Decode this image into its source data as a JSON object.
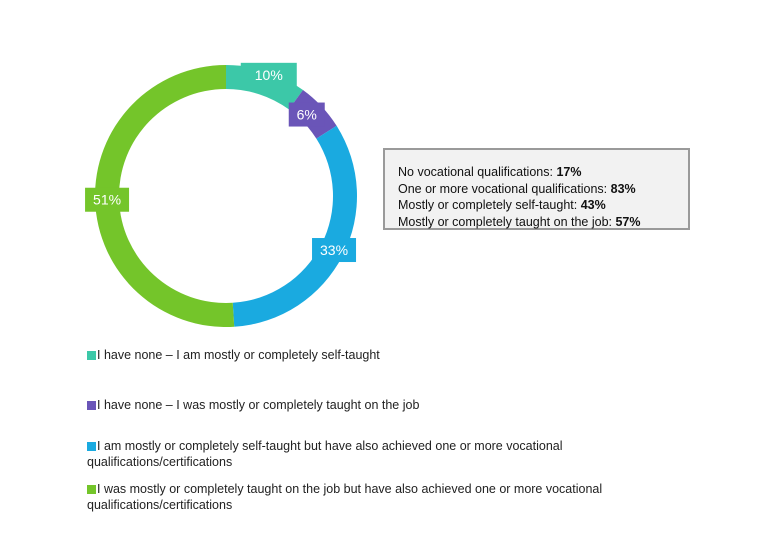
{
  "chart_data": {
    "type": "pie",
    "title": "",
    "slices": [
      {
        "label": "I have none – I am mostly or completely self-taught",
        "value": 10,
        "display": "10%",
        "color": "#3cc8a8"
      },
      {
        "label": "I have none – I was mostly or completely taught on the job",
        "value": 6,
        "display": "6%",
        "color": "#6a55b8"
      },
      {
        "label": "I am mostly or completely self-taught but have also achieved one or more vocational qualifications/certifications",
        "value": 33,
        "display": "33%",
        "color": "#1aaae0"
      },
      {
        "label": "I was mostly or completely taught on the job but have also achieved one or more vocational qualifications/certifications",
        "value": 51,
        "display": "51%",
        "color": "#74c52a"
      }
    ],
    "legend_position": "bottom"
  },
  "summary": [
    {
      "text": "No vocational qualifications: ",
      "value": "17%"
    },
    {
      "text": "One or more vocational qualifications: ",
      "value": "83%"
    },
    {
      "text": "Mostly or completely self-taught: ",
      "value": "43%"
    },
    {
      "text": "Mostly or completely taught on the job: ",
      "value": "57%"
    }
  ]
}
